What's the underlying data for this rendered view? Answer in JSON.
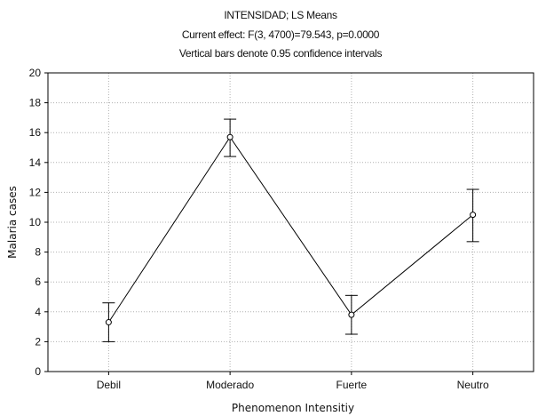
{
  "chart_data": {
    "type": "line",
    "title_lines": [
      "INTENSIDAD; LS Means",
      "Current effect: F(3, 4700)=79.543, p=0.0000",
      "Vertical bars denote 0.95 confidence intervals"
    ],
    "xlabel": "Phenomenon Intensitiy",
    "ylabel": "Malaria cases",
    "categories": [
      "Debil",
      "Moderado",
      "Fuerte",
      "Neutro"
    ],
    "series": [
      {
        "values": [
          3.3,
          15.7,
          3.8,
          10.5
        ],
        "ci_lower": [
          2.0,
          14.4,
          2.5,
          8.7
        ],
        "ci_upper": [
          4.6,
          16.9,
          5.1,
          12.2
        ]
      }
    ],
    "ylim": [
      0,
      20
    ],
    "yticks": [
      0,
      2,
      4,
      6,
      8,
      10,
      12,
      14,
      16,
      18,
      20
    ],
    "grid": true,
    "colors": {
      "line": "#000000",
      "grid": "#b0b0b0",
      "marker_fill": "#ffffff"
    }
  }
}
